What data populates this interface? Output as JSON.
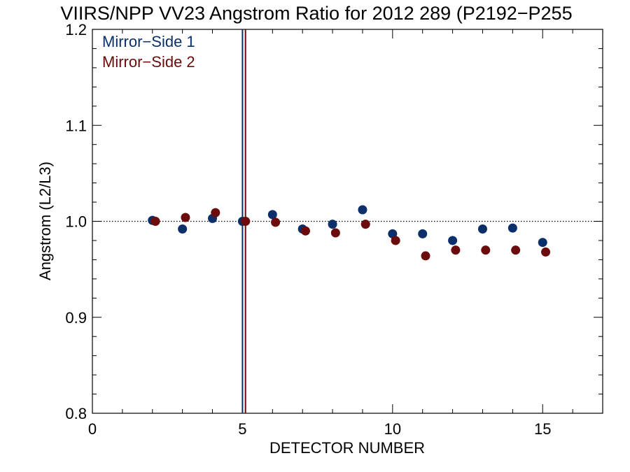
{
  "chart_data": {
    "type": "scatter",
    "title": "VIIRS/NPP VV23 Angstrom Ratio for 2012 289 (P2192−P255",
    "xlabel": "DETECTOR NUMBER",
    "ylabel": "Angstrom (L2/L3)",
    "xlim": [
      0,
      17
    ],
    "ylim": [
      0.8,
      1.2
    ],
    "x_ticks": [
      0,
      5,
      10,
      15
    ],
    "x_tick_labels": [
      "0",
      "5",
      "10",
      "15"
    ],
    "x_minor_step": 1,
    "y_ticks": [
      0.8,
      0.9,
      1.0,
      1.1,
      1.2
    ],
    "y_tick_labels": [
      "0.8",
      "0.9",
      "1.0",
      "1.1",
      "1.2"
    ],
    "y_minor_step": 0.02,
    "reference_line_y": 1.0,
    "vertical_lines": [
      {
        "x": 5.0,
        "color": "#0b2f6b"
      },
      {
        "x": 5.1,
        "color": "#6b0b0b"
      }
    ],
    "legend_position": "top-left",
    "series": [
      {
        "name": "Mirror−Side 1",
        "color": "#0b2f6b",
        "x": [
          2,
          3,
          4,
          5,
          6,
          7,
          8,
          9,
          10,
          11,
          12,
          13,
          14,
          15
        ],
        "y": [
          1.001,
          0.992,
          1.003,
          1.0,
          1.007,
          0.992,
          0.997,
          1.012,
          0.987,
          0.987,
          0.98,
          0.992,
          0.993,
          0.978
        ]
      },
      {
        "name": "Mirror−Side 2",
        "color": "#6b0b0b",
        "x": [
          2.1,
          3.1,
          4.1,
          5.1,
          6.1,
          7.1,
          8.1,
          9.1,
          10.1,
          11.1,
          12.1,
          13.1,
          14.1,
          15.1
        ],
        "y": [
          1.0,
          1.004,
          1.009,
          1.0,
          0.999,
          0.99,
          0.988,
          0.997,
          0.98,
          0.964,
          0.97,
          0.97,
          0.97,
          0.968
        ]
      }
    ]
  }
}
